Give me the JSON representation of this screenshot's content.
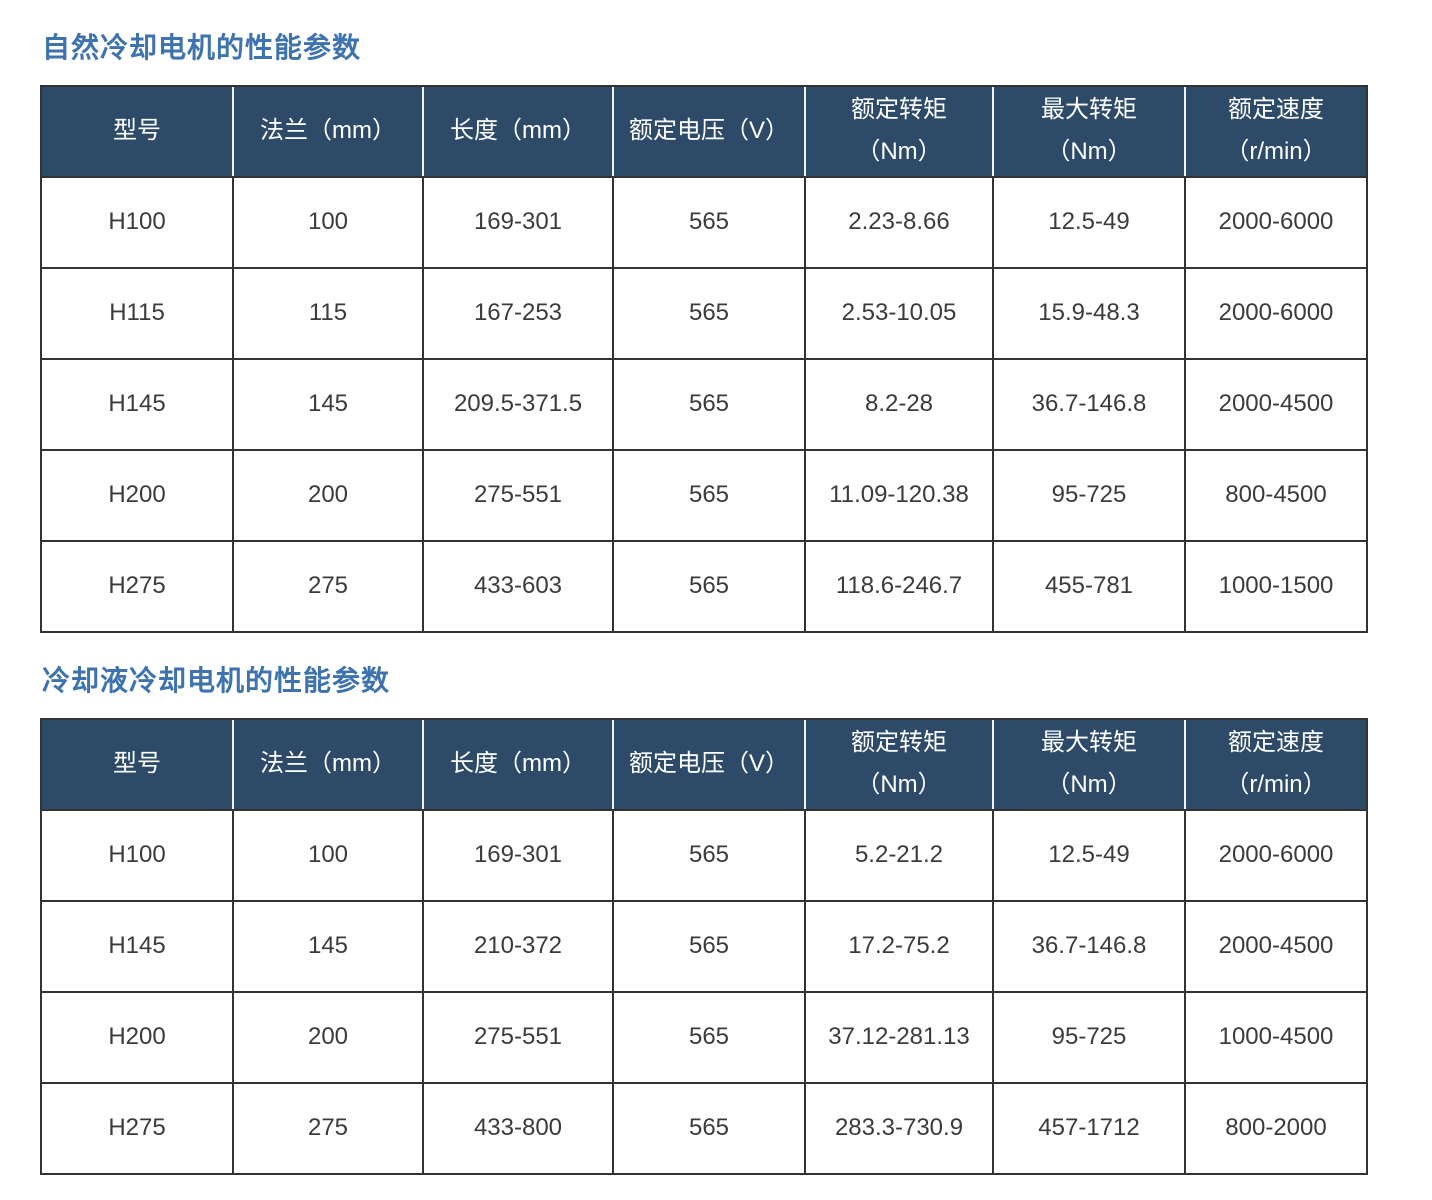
{
  "colors": {
    "title_blue": "#3e73b0",
    "header_background": "#2d4b69",
    "header_text": "#ffffff",
    "table_border": "#333333",
    "body_text": "#3b3b3b"
  },
  "tables": [
    {
      "title": "自然冷却电机的性能参数",
      "columns": [
        {
          "line1": "型号",
          "line2": ""
        },
        {
          "line1": "法兰（mm）",
          "line2": ""
        },
        {
          "line1": "长度（mm）",
          "line2": ""
        },
        {
          "line1": "额定电压（V）",
          "line2": ""
        },
        {
          "line1": "额定转矩",
          "line2": "（Nm）"
        },
        {
          "line1": "最大转矩",
          "line2": "（Nm）"
        },
        {
          "line1": "额定速度",
          "line2": "（r/min）"
        }
      ],
      "rows": [
        [
          "H100",
          "100",
          "169-301",
          "565",
          "2.23-8.66",
          "12.5-49",
          "2000-6000"
        ],
        [
          "H115",
          "115",
          "167-253",
          "565",
          "2.53-10.05",
          "15.9-48.3",
          "2000-6000"
        ],
        [
          "H145",
          "145",
          "209.5-371.5",
          "565",
          "8.2-28",
          "36.7-146.8",
          "2000-4500"
        ],
        [
          "H200",
          "200",
          "275-551",
          "565",
          "11.09-120.38",
          "95-725",
          "800-4500"
        ],
        [
          "H275",
          "275",
          "433-603",
          "565",
          "118.6-246.7",
          "455-781",
          "1000-1500"
        ]
      ]
    },
    {
      "title": "冷却液冷却电机的性能参数",
      "columns": [
        {
          "line1": "型号",
          "line2": ""
        },
        {
          "line1": "法兰（mm）",
          "line2": ""
        },
        {
          "line1": "长度（mm）",
          "line2": ""
        },
        {
          "line1": "额定电压（V）",
          "line2": ""
        },
        {
          "line1": "额定转矩",
          "line2": "（Nm）"
        },
        {
          "line1": "最大转矩",
          "line2": "（Nm）"
        },
        {
          "line1": "额定速度",
          "line2": "（r/min）"
        }
      ],
      "rows": [
        [
          "H100",
          "100",
          "169-301",
          "565",
          "5.2-21.2",
          "12.5-49",
          "2000-6000"
        ],
        [
          "H145",
          "145",
          "210-372",
          "565",
          "17.2-75.2",
          "36.7-146.8",
          "2000-4500"
        ],
        [
          "H200",
          "200",
          "275-551",
          "565",
          "37.12-281.13",
          "95-725",
          "1000-4500"
        ],
        [
          "H275",
          "275",
          "433-800",
          "565",
          "283.3-730.9",
          "457-1712",
          "800-2000"
        ]
      ]
    }
  ]
}
